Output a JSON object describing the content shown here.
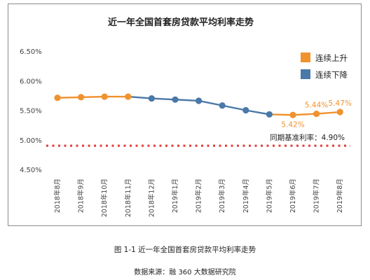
{
  "chart_data": {
    "type": "line",
    "title": "近一年全国首套房贷款平均利率走势",
    "categories": [
      "2018年8月",
      "2018年9月",
      "2018年10月",
      "2018年11月",
      "2018年12月",
      "2019年1月",
      "2019年2月",
      "2019年3月",
      "2019年4月",
      "2019年5月",
      "2019年6月",
      "2019年7月",
      "2019年8月"
    ],
    "values": [
      5.71,
      5.72,
      5.73,
      5.73,
      5.7,
      5.68,
      5.66,
      5.58,
      5.5,
      5.43,
      5.42,
      5.44,
      5.47
    ],
    "trend": [
      "up",
      "up",
      "up",
      "up",
      "down",
      "down",
      "down",
      "down",
      "down",
      "down",
      "up",
      "up",
      "up"
    ],
    "yticks": [
      "6.50%",
      "6.00%",
      "5.50%",
      "5.00%",
      "4.50%"
    ],
    "ytick_values": [
      6.5,
      6.0,
      5.5,
      5.0,
      4.5
    ],
    "ylim": [
      4.5,
      6.5
    ],
    "grid": false,
    "legend": [
      {
        "name": "连续上升",
        "color": "#f0922e"
      },
      {
        "name": "连续下降",
        "color": "#4a78a8"
      }
    ],
    "legend_position": "top-right",
    "data_labels": [
      {
        "index": 10,
        "text": "5.42%"
      },
      {
        "index": 11,
        "text": "5.44%"
      },
      {
        "index": 12,
        "text": "5.47%"
      }
    ],
    "baseline": {
      "value": 4.9,
      "label": "同期基准利率：4.90%",
      "color": "#e34040"
    },
    "colors": {
      "up": "#f0922e",
      "down": "#4a78a8",
      "up_label": "#f0922e"
    }
  },
  "caption": {
    "figure": "图 1-1  近一年全国首套房贷款平均利率走势",
    "source": "数据来源：融 360 大数据研究院"
  }
}
